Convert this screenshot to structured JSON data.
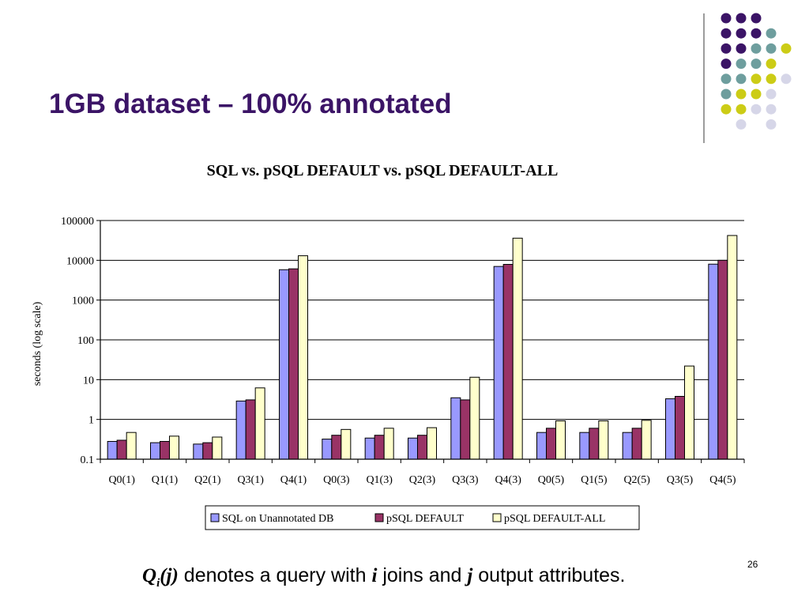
{
  "slide": {
    "title": "1GB dataset – 100% annotated",
    "page_number": "26",
    "footnote": {
      "q": "Q",
      "sub": "i",
      "arg": "(j)",
      "text1": " denotes a query with ",
      "i": "i",
      "text2": " joins and ",
      "j": "j",
      "text3": " output attributes."
    }
  },
  "colors": {
    "title": "#3b1466",
    "deco_purple": "#3b1466",
    "deco_teal": "#6e9e9e",
    "deco_yellow": "#cccc16",
    "deco_lavender": "#d6d6e8"
  },
  "chart_data": {
    "type": "bar",
    "title": "SQL vs. pSQL DEFAULT vs. pSQL DEFAULT-ALL",
    "xlabel": "",
    "ylabel": "seconds (log scale)",
    "yscale": "log",
    "ylim": [
      0.1,
      100000
    ],
    "yticks": [
      "0.1",
      "1",
      "10",
      "100",
      "1000",
      "10000",
      "100000"
    ],
    "grid": true,
    "legend_position": "bottom",
    "categories": [
      "Q0(1)",
      "Q1(1)",
      "Q2(1)",
      "Q3(1)",
      "Q4(1)",
      "Q0(3)",
      "Q1(3)",
      "Q2(3)",
      "Q3(3)",
      "Q4(3)",
      "Q0(5)",
      "Q1(5)",
      "Q2(5)",
      "Q3(5)",
      "Q4(5)"
    ],
    "series": [
      {
        "name": "SQL on Unannotated DB",
        "color": "#9999ff",
        "values": [
          0.28,
          0.26,
          0.24,
          2.9,
          5800,
          0.32,
          0.34,
          0.34,
          3.5,
          7000,
          0.47,
          0.47,
          0.47,
          3.3,
          8000
        ]
      },
      {
        "name": "pSQL DEFAULT",
        "color": "#993366",
        "values": [
          0.3,
          0.28,
          0.26,
          3.1,
          6100,
          0.4,
          0.4,
          0.4,
          3.1,
          7900,
          0.6,
          0.6,
          0.6,
          3.8,
          10000
        ]
      },
      {
        "name": "pSQL DEFAULT-ALL",
        "color": "#ffffcc",
        "values": [
          0.47,
          0.38,
          0.36,
          6.2,
          13000,
          0.56,
          0.6,
          0.62,
          11.5,
          36000,
          0.92,
          0.92,
          0.95,
          22,
          42000
        ]
      }
    ]
  }
}
